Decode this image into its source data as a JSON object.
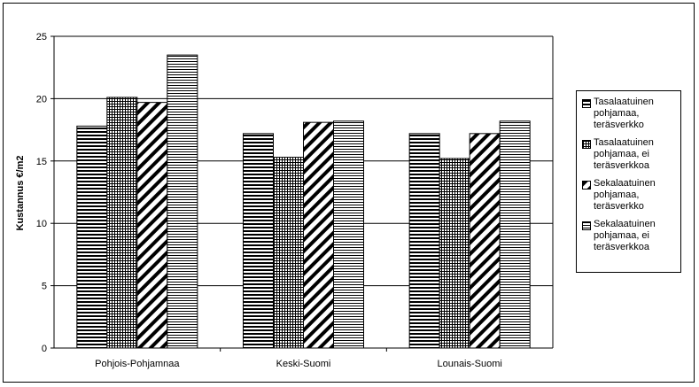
{
  "chart_data": {
    "type": "bar",
    "title": "",
    "xlabel": "",
    "ylabel": "Kustannus €/m2",
    "ylim": [
      0,
      25
    ],
    "yticks": [
      0,
      5,
      10,
      15,
      20,
      25
    ],
    "grid": true,
    "legend_position": "right",
    "categories": [
      "Pohjois-Pohjamnaa",
      "Keski-Suomi",
      "Lounais-Suomi"
    ],
    "series": [
      {
        "name": "Tasalaatuinen pohjamaa, teräsverkko",
        "values": [
          17.8,
          17.2,
          17.2
        ],
        "pattern": "horizontal-lines"
      },
      {
        "name": "Tasalaatuinen pohjamaa, ei teräsverkkoa",
        "values": [
          20.1,
          15.3,
          15.2
        ],
        "pattern": "crosshatch"
      },
      {
        "name": "Sekalaatuinen pohjamaa, teräsverkko",
        "values": [
          19.7,
          18.1,
          17.2
        ],
        "pattern": "diagonal-lines"
      },
      {
        "name": "Sekalaatuinen pohjamaa, ei teräsverkkoa",
        "values": [
          23.5,
          18.2,
          18.2
        ],
        "pattern": "dense-horizontal-lines"
      }
    ]
  }
}
